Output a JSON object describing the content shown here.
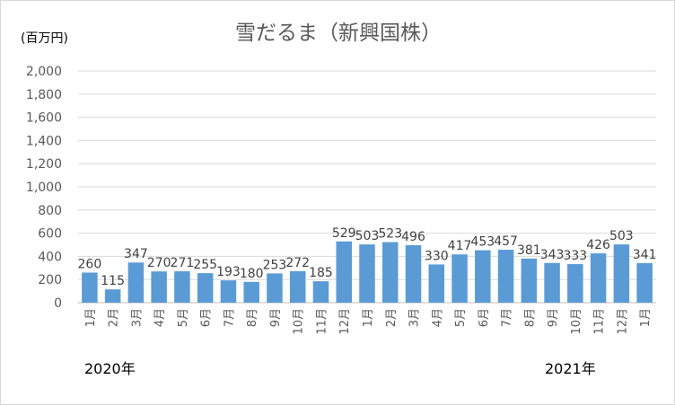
{
  "chart_data": {
    "type": "bar",
    "title": "雪だるま（新興国株）",
    "unit_label": "(百万円)",
    "ylim": [
      0,
      2000
    ],
    "yticks": [
      "0",
      "200",
      "400",
      "600",
      "800",
      "1,000",
      "1,200",
      "1,400",
      "1,600",
      "1,800",
      "2,000"
    ],
    "grid": true,
    "bar_color": "#5b9bd5",
    "categories": [
      "1月",
      "2月",
      "3月",
      "4月",
      "5月",
      "6月",
      "7月",
      "8月",
      "9月",
      "10月",
      "11月",
      "12月",
      "1月",
      "2月",
      "3月",
      "4月",
      "5月",
      "6月",
      "7月",
      "8月",
      "9月",
      "10月",
      "11月",
      "12月",
      "1月"
    ],
    "values": [
      260,
      115,
      347,
      270,
      271,
      255,
      193,
      180,
      253,
      272,
      185,
      529,
      503,
      523,
      496,
      330,
      417,
      453,
      457,
      381,
      343,
      333,
      426,
      503,
      341
    ],
    "year_labels": [
      {
        "text": "2020年",
        "index": 0
      },
      {
        "text": "2021年",
        "index": 20
      }
    ]
  }
}
